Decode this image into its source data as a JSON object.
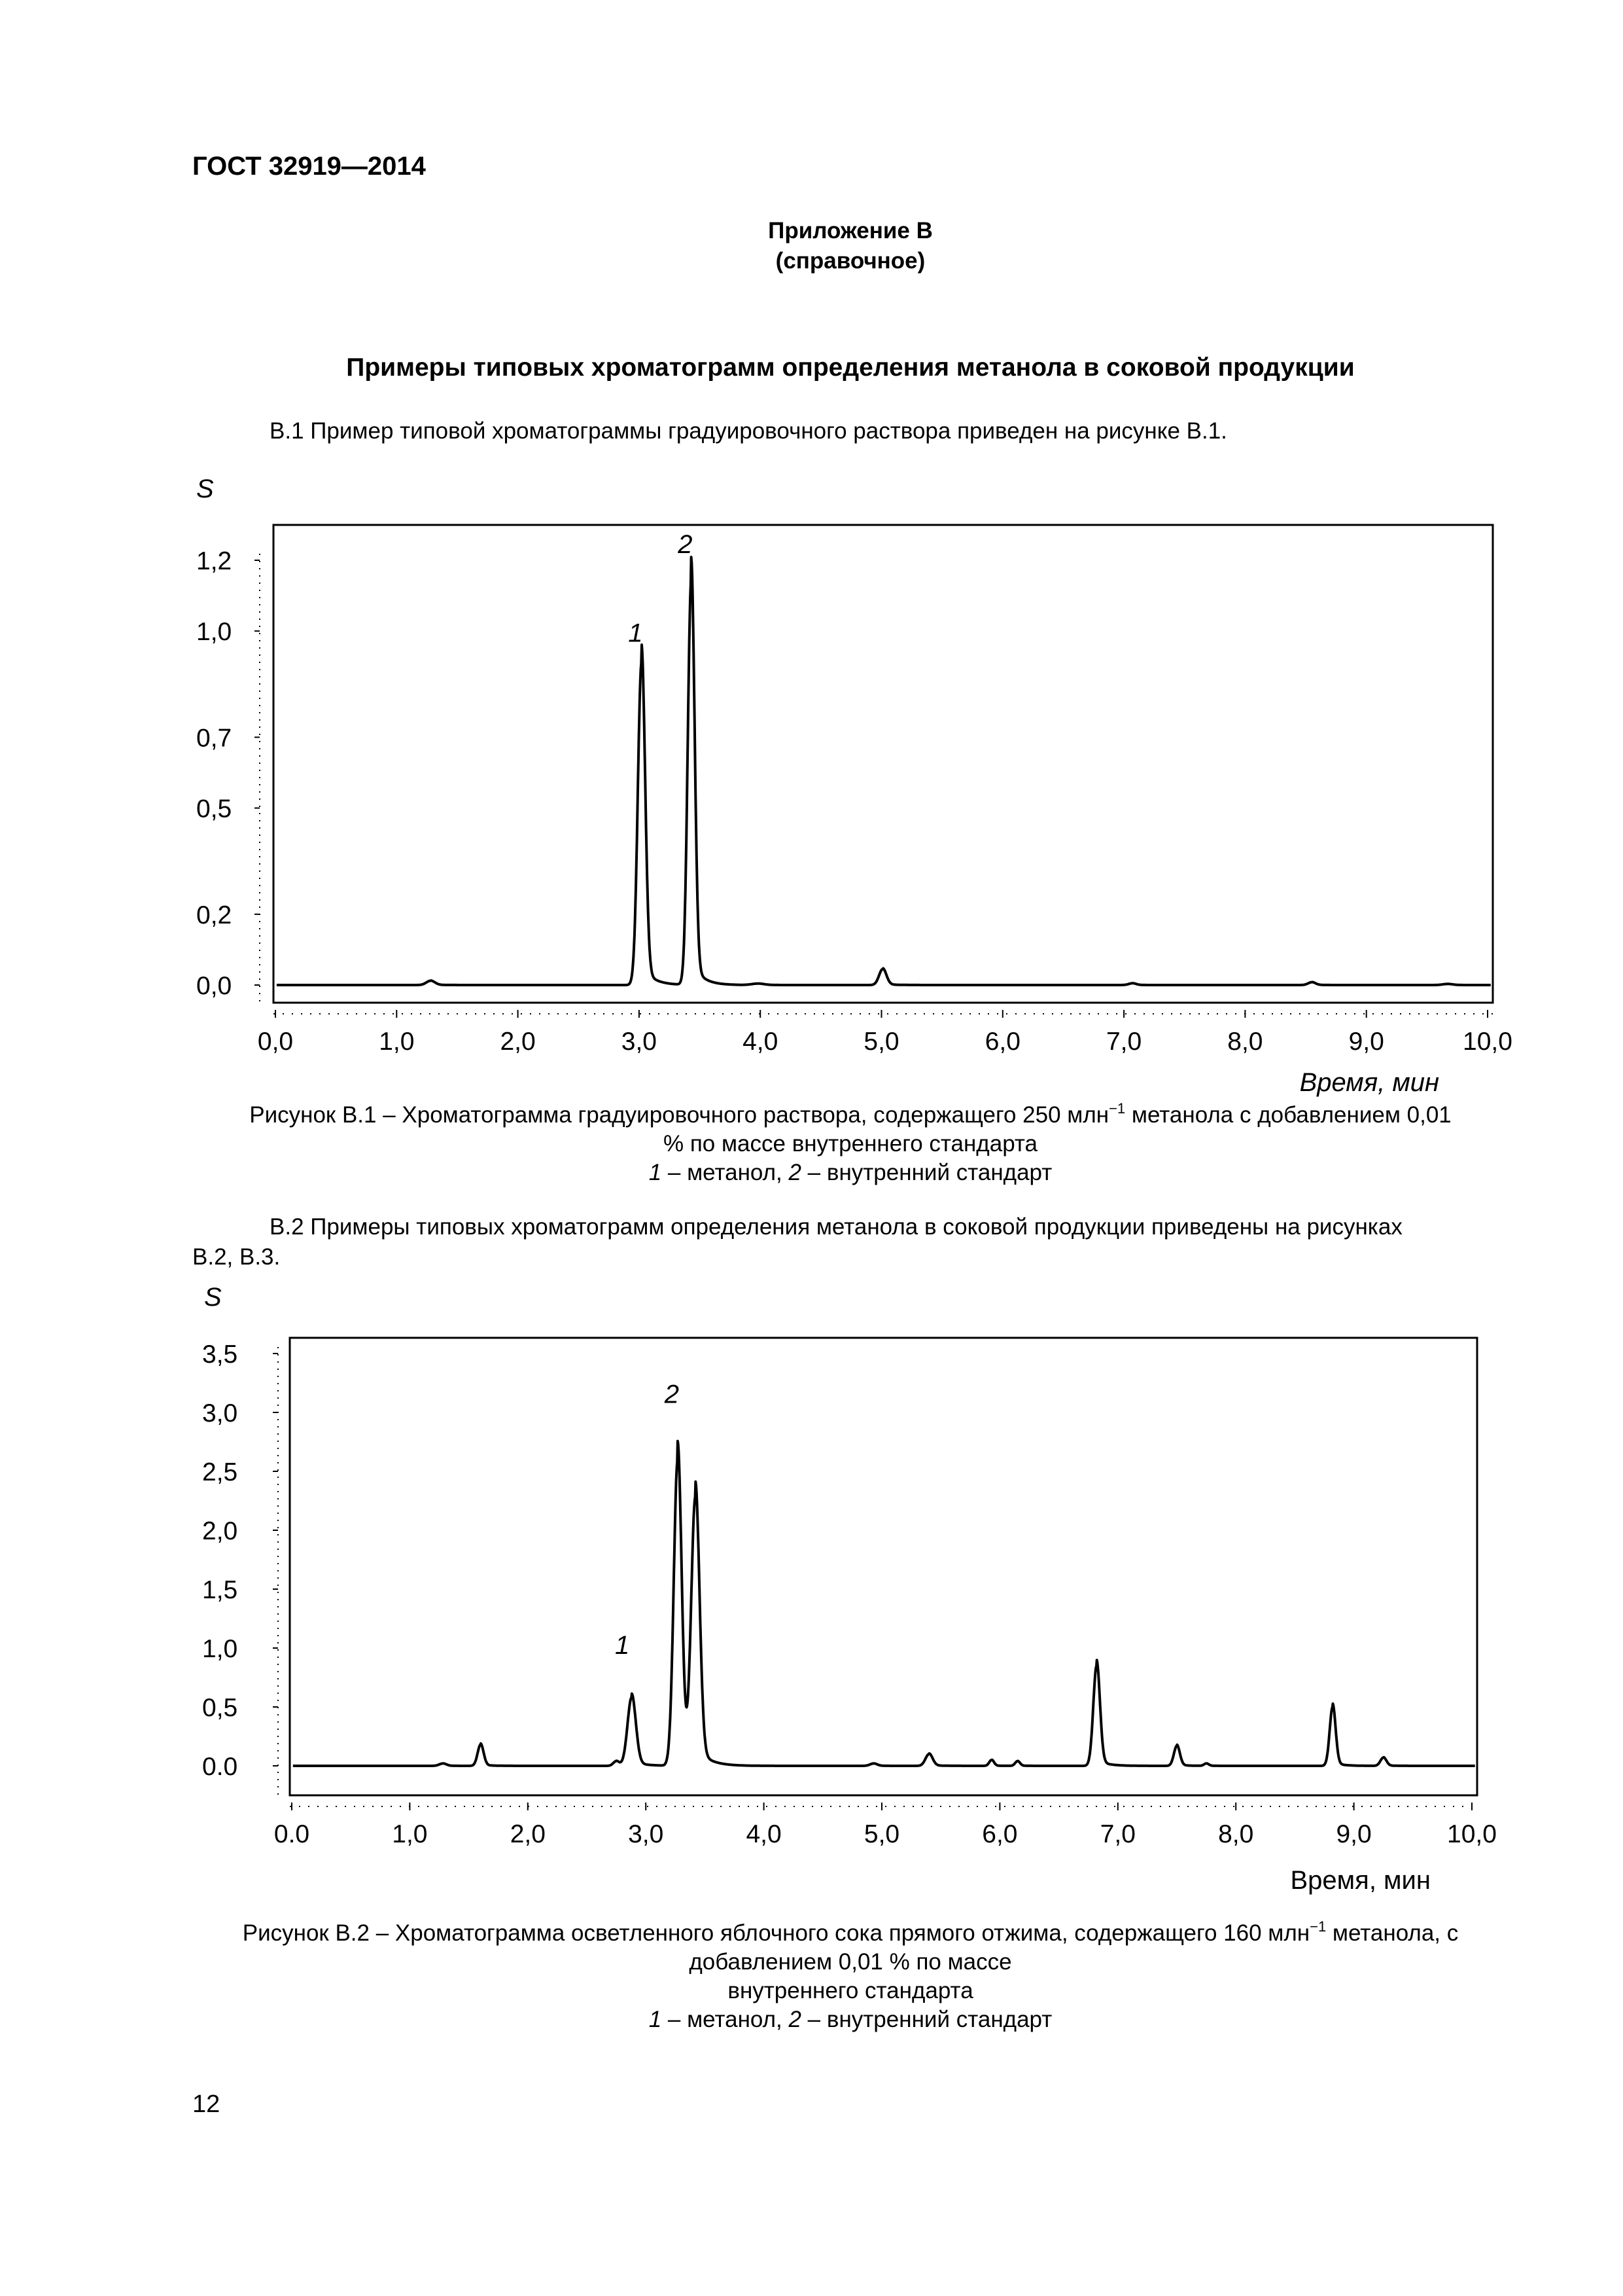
{
  "header": {
    "doc_code": "ГОСТ 32919—2014"
  },
  "appendix": {
    "title": "Приложение В",
    "subtitle": "(справочное)"
  },
  "heading": "Примеры типовых хроматограмм определения метанола в соковой продукции",
  "para_b1": "В.1 Пример типовой хроматограммы градуировочного раствора приведен на рисунке В.1.",
  "para_b2_line1": "В.2 Примеры типовых хроматограмм определения метанола в соковой продукции приведены на рисунках",
  "para_b2_line2": "В.2, В.3.",
  "figure1": {
    "caption": {
      "line1_a": "Рисунок В.1 – Хроматограмма градуировочного раствора, содержащего 250 млн",
      "line1_sup": "−1",
      "line1_b": " метанола с добавлением 0,01",
      "line2": "% по массе внутреннего стандарта",
      "legend_1_num": "1",
      "legend_1_text": " – метанол, ",
      "legend_2_num": "2",
      "legend_2_text": " – внутренний стандарт"
    }
  },
  "figure2": {
    "caption": {
      "line1_a": "Рисунок В.2 – Хроматограмма осветленного яблочного сока прямого отжима, содержащего 160 млн",
      "line1_sup": "−1",
      "line1_b": " метанола, с",
      "line2": "добавлением 0,01 % по массе",
      "line3": "внутреннего стандарта",
      "legend_1_num": "1",
      "legend_1_text": " – метанол, ",
      "legend_2_num": "2",
      "legend_2_text": " – внутренний стандарт"
    }
  },
  "page_number": "12",
  "chart_data": [
    {
      "type": "line",
      "title": "",
      "ylabel": "S",
      "xlabel": "Время, мин",
      "xlim": [
        0,
        10.3
      ],
      "ylim": [
        0,
        1.2
      ],
      "xticks": [
        "0,0",
        "1,0",
        "2,0",
        "3,0",
        "4,0",
        "5,0",
        "6,0",
        "7,0",
        "8,0",
        "9,0",
        "10,0"
      ],
      "yticks": [
        "0,0",
        "0,2",
        "0,5",
        "0,7",
        "1,0",
        "1,2"
      ],
      "annotations": [
        {
          "text": "1",
          "x": 2.97,
          "y": 0.97
        },
        {
          "text": "2",
          "x": 3.38,
          "y": 1.22
        }
      ],
      "peaks": [
        {
          "x": 1.28,
          "height": 0.012,
          "width": 0.035
        },
        {
          "x": 3.02,
          "height": 0.91,
          "width": 0.03
        },
        {
          "x": 3.43,
          "height": 1.14,
          "width": 0.028
        },
        {
          "x": 3.98,
          "height": 0.004,
          "width": 0.05
        },
        {
          "x": 5.01,
          "height": 0.045,
          "width": 0.03
        },
        {
          "x": 7.07,
          "height": 0.005,
          "width": 0.03
        },
        {
          "x": 8.55,
          "height": 0.008,
          "width": 0.03
        },
        {
          "x": 9.67,
          "height": 0.003,
          "width": 0.04
        }
      ],
      "grid": false
    },
    {
      "type": "line",
      "title": "",
      "ylabel": "S",
      "xlabel": "Время, мин",
      "xlim": [
        0,
        10.1
      ],
      "ylim": [
        0,
        3.5
      ],
      "xticks": [
        "0.0",
        "1,0",
        "2,0",
        "3,0",
        "4,0",
        "5,0",
        "6,0",
        "7,0",
        "8,0",
        "9,0",
        "10,0"
      ],
      "yticks": [
        "0.0",
        "0,5",
        "1,0",
        "1,5",
        "2,0",
        "2,5",
        "3,0",
        "3,5"
      ],
      "annotations": [
        {
          "text": "1",
          "x": 2.8,
          "y": 0.95
        },
        {
          "text": "2",
          "x": 3.22,
          "y": 3.08
        }
      ],
      "peaks": [
        {
          "x": 1.28,
          "height": 0.02,
          "width": 0.03
        },
        {
          "x": 1.6,
          "height": 0.18,
          "width": 0.025
        },
        {
          "x": 2.75,
          "height": 0.04,
          "width": 0.025
        },
        {
          "x": 2.88,
          "height": 0.58,
          "width": 0.035
        },
        {
          "x": 3.27,
          "height": 2.6,
          "width": 0.033
        },
        {
          "x": 3.42,
          "height": 2.25,
          "width": 0.035
        },
        {
          "x": 4.93,
          "height": 0.02,
          "width": 0.03
        },
        {
          "x": 5.4,
          "height": 0.1,
          "width": 0.03
        },
        {
          "x": 5.93,
          "height": 0.05,
          "width": 0.02
        },
        {
          "x": 6.15,
          "height": 0.04,
          "width": 0.02
        },
        {
          "x": 6.82,
          "height": 0.85,
          "width": 0.028
        },
        {
          "x": 7.5,
          "height": 0.17,
          "width": 0.025
        },
        {
          "x": 7.75,
          "height": 0.02,
          "width": 0.02
        },
        {
          "x": 8.82,
          "height": 0.5,
          "width": 0.025
        },
        {
          "x": 9.25,
          "height": 0.07,
          "width": 0.025
        }
      ],
      "grid": false
    }
  ]
}
